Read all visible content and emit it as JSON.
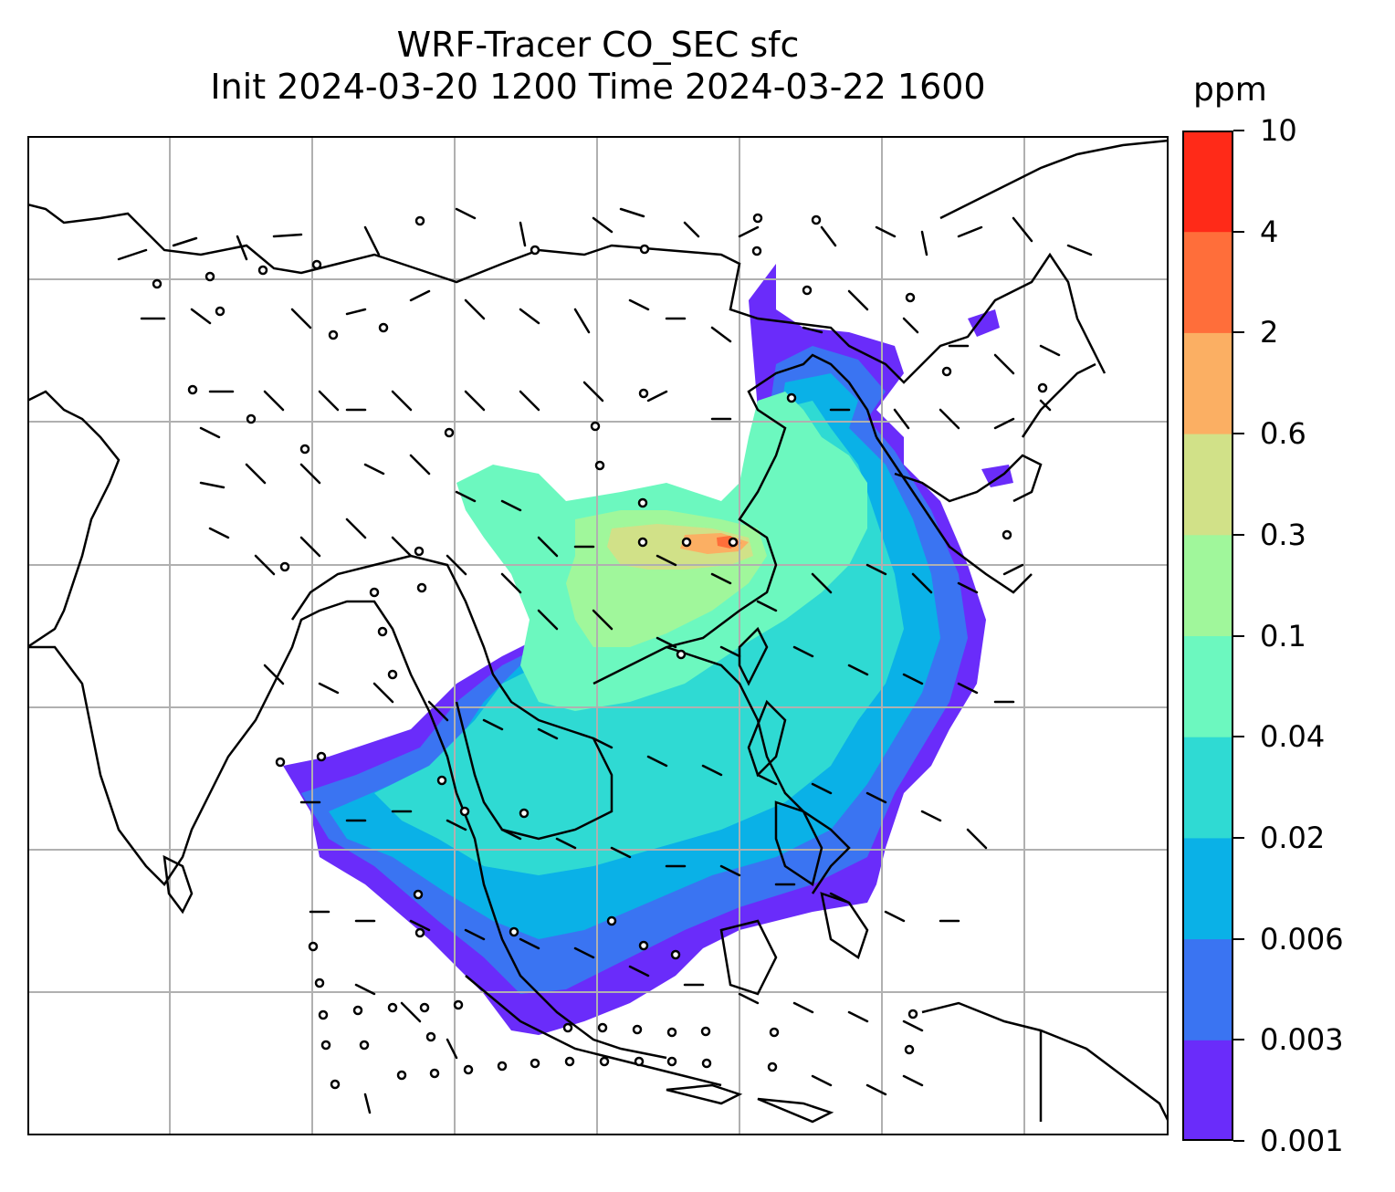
{
  "title": {
    "line1": "WRF-Tracer CO_SEC sfc",
    "line2": "Init 2024-03-20 1200 Time 2024-03-22 1600"
  },
  "colorbar": {
    "unit": "ppm",
    "ticks": [
      "0.001",
      "0.003",
      "0.006",
      "0.02",
      "0.04",
      "0.1",
      "0.3",
      "0.6",
      "2",
      "4",
      "10"
    ],
    "colors": [
      "#6a2cfa",
      "#3a74f2",
      "#0ab1e7",
      "#2fdad3",
      "#6cf8bf",
      "#a0f79b",
      "#d1e188",
      "#fbaf63",
      "#ff6e3a",
      "#ff2a18"
    ]
  },
  "map": {
    "gridlines": true,
    "coastline_color": "#000000",
    "grid_color": "#b0b0b0"
  }
}
